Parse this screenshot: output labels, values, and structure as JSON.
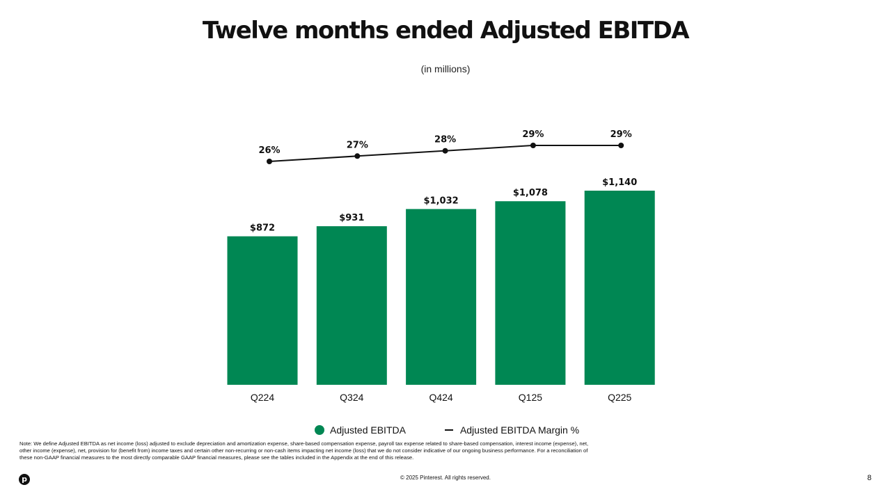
{
  "chart_data": {
    "type": "bar",
    "title": "Twelve months ended Adjusted EBITDA",
    "subtitle": "(in millions)",
    "categories": [
      "Q224",
      "Q324",
      "Q424",
      "Q125",
      "Q225"
    ],
    "series": [
      {
        "name": "Adjusted EBITDA",
        "type": "bar",
        "values": [
          872,
          931,
          1032,
          1078,
          1140
        ],
        "labels": [
          "$872",
          "$931",
          "$1,032",
          "$1,078",
          "$1,140"
        ],
        "color": "#008753"
      },
      {
        "name": "Adjusted EBITDA Margin %",
        "type": "line",
        "values": [
          26,
          27,
          28,
          29,
          29
        ],
        "labels": [
          "26%",
          "27%",
          "28%",
          "29%",
          "29%"
        ],
        "color": "#111111"
      }
    ],
    "bar_range": [
      0,
      1140
    ],
    "line_range": [
      26,
      29
    ],
    "legend_position": "bottom",
    "grid": false
  },
  "legend": {
    "bar_label": "Adjusted EBITDA",
    "line_label": "Adjusted EBITDA Margin %"
  },
  "note": "Note: We define Adjusted EBITDA as net income (loss) adjusted to exclude depreciation and amortization expense, share-based compensation expense, payroll tax expense related to share-based compensation, interest income (expense), net, other income (expense), net, provision for (benefit from) income taxes and certain other non-recurring or non-cash items impacting net income (loss) that we do not consider indicative of our ongoing business performance. For a reconciliation of these non-GAAP financial measures to the most directly comparable GAAP financial measures, please see the tables included in the Appendix at the end of this release.",
  "footer": {
    "copyright": "© 2025 Pinterest. All rights reserved.",
    "page_number": "8",
    "logo_glyph": "p"
  },
  "colors": {
    "bar": "#008753",
    "line": "#111111"
  }
}
